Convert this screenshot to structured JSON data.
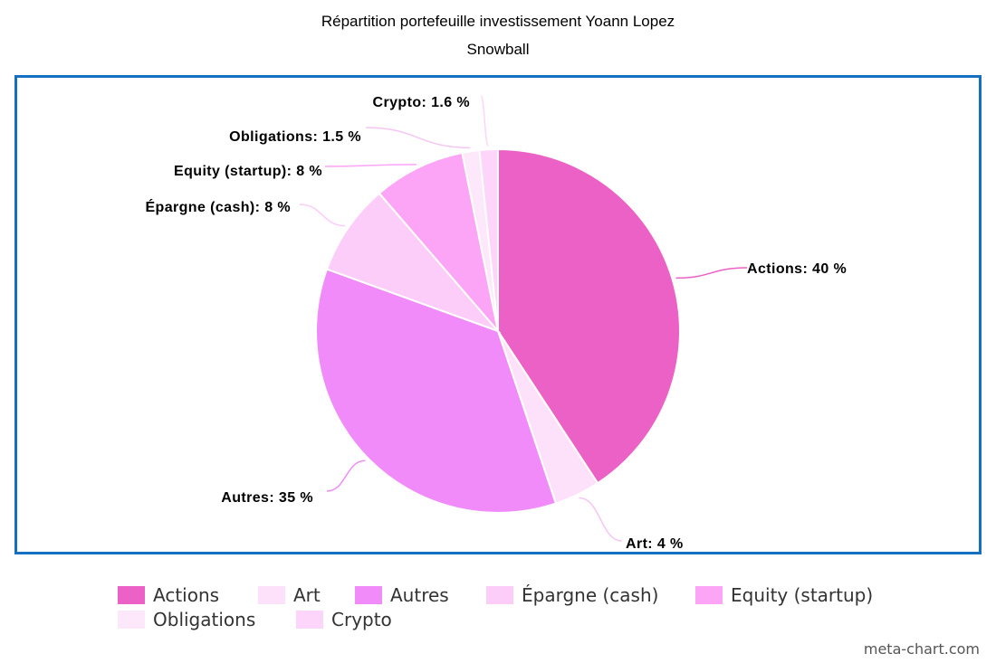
{
  "chart_data": {
    "type": "pie",
    "title": "Répartition portefeuille investissement Yoann Lopez",
    "subtitle": "Snowball",
    "slices": [
      {
        "name": "Actions",
        "value": 40,
        "label": "Actions: 40 %",
        "color": "#ec61c5"
      },
      {
        "name": "Art",
        "value": 4,
        "label": "Art: 4 %",
        "color": "#fde1fb"
      },
      {
        "name": "Autres",
        "value": 35,
        "label": "Autres: 35 %",
        "color": "#f18bfa"
      },
      {
        "name": "Épargne (cash)",
        "value": 8,
        "label": "Épargne (cash): 8 %",
        "color": "#fdcdfa"
      },
      {
        "name": "Equity (startup)",
        "value": 8,
        "label": "Equity (startup): 8 %",
        "color": "#fca4f6"
      },
      {
        "name": "Obligations",
        "value": 1.5,
        "label": "Obligations: 1.5 %",
        "color": "#fde7fb"
      },
      {
        "name": "Crypto",
        "value": 1.6,
        "label": "Crypto: 1.6 %",
        "color": "#fdd4fa"
      }
    ],
    "legend": [
      "Actions",
      "Art",
      "Autres",
      "Épargne (cash)",
      "Equity (startup)",
      "Obligations",
      "Crypto"
    ],
    "legend_position": "bottom"
  },
  "credit": "meta-chart.com"
}
